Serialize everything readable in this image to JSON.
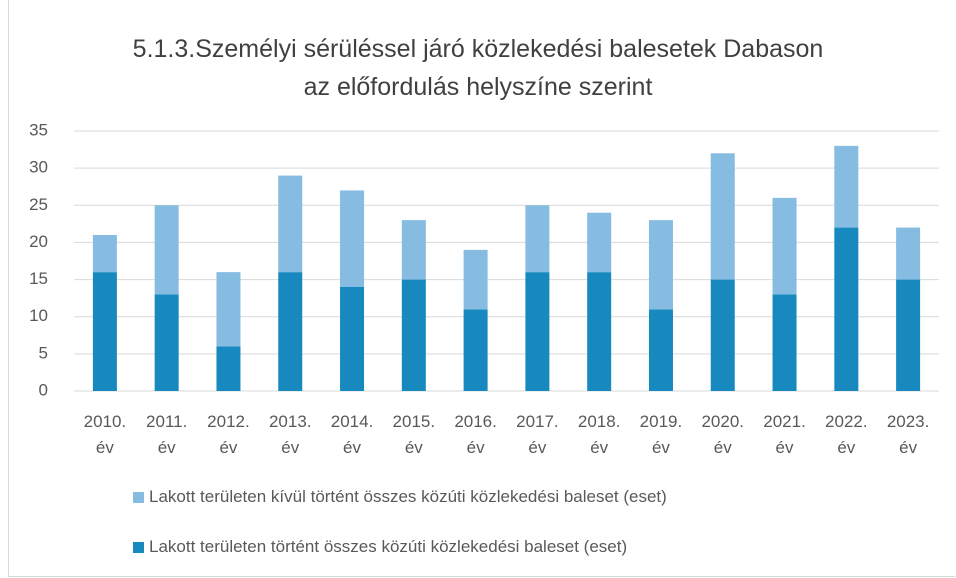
{
  "chart_data": {
    "type": "stacked_bar",
    "title": "5.1.3.Személyi sérüléssel járó közlekedési balesetek Dabason az előfordulás helyszíne szerint",
    "categories": [
      "2010. év",
      "2011. év",
      "2012. év",
      "2013. év",
      "2014. év",
      "2015. év",
      "2016. év",
      "2017. év",
      "2018. év",
      "2019. év",
      "2020. év",
      "2021. év",
      "2022. év",
      "2023. év"
    ],
    "series": [
      {
        "name": "Lakott területen történt összes közúti közlekedési baleset (eset)",
        "color": "#1789bf",
        "values": [
          16,
          13,
          6,
          16,
          14,
          15,
          11,
          16,
          16,
          11,
          15,
          13,
          22,
          15
        ]
      },
      {
        "name": "Lakott területen kívül történt összes közúti közlekedési baleset (eset)",
        "color": "#86bbe2",
        "values": [
          5,
          12,
          10,
          13,
          13,
          8,
          8,
          9,
          8,
          12,
          17,
          13,
          11,
          7
        ]
      }
    ],
    "ylim": [
      0,
      35
    ],
    "yticks": [
      0,
      5,
      10,
      15,
      20,
      25,
      30,
      35
    ],
    "grid": true
  }
}
